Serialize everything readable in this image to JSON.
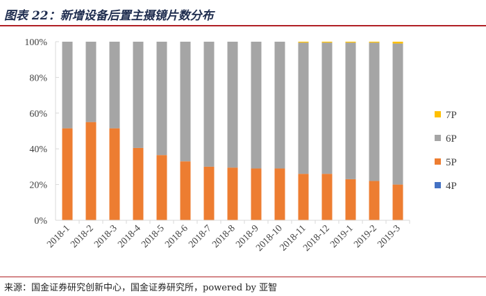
{
  "header": {
    "title": "图表 22：新增设备后置主摄镜片数分布"
  },
  "footer": {
    "source": "来源：国金证券研究创新中心，国金证券研究所，powered by 亚智"
  },
  "colors": {
    "4P": "#4472c4",
    "5P": "#ed7d31",
    "6P": "#a5a5a5",
    "7P": "#ffc000",
    "axis": "#d9d9d9",
    "text": "#404040"
  },
  "chart_data": {
    "type": "bar",
    "stacked": true,
    "percent_stacked": true,
    "title": "",
    "xlabel": "",
    "ylabel": "",
    "ylim": [
      0,
      100
    ],
    "yticks": [
      "0%",
      "20%",
      "40%",
      "60%",
      "80%",
      "100%"
    ],
    "ytick_values": [
      0,
      20,
      40,
      60,
      80,
      100
    ],
    "categories": [
      "2018-1",
      "2018-2",
      "2018-3",
      "2018-4",
      "2018-5",
      "2018-6",
      "2018-7",
      "2018-8",
      "2018-9",
      "2018-10",
      "2018-11",
      "2018-12",
      "2019-1",
      "2019-2",
      "2019-3"
    ],
    "series": [
      {
        "name": "4P",
        "values": [
          0,
          0,
          0,
          0,
          0,
          0,
          0,
          0,
          0,
          0,
          0,
          0,
          0,
          0,
          0
        ]
      },
      {
        "name": "5P",
        "values": [
          51.5,
          55,
          51.5,
          40.5,
          36.5,
          33,
          30,
          29.5,
          29,
          29,
          26,
          26,
          23,
          22,
          20
        ]
      },
      {
        "name": "6P",
        "values": [
          48.5,
          45,
          48.5,
          59.5,
          63.5,
          67,
          70,
          70.5,
          71,
          71,
          73.5,
          73.5,
          76.5,
          77.5,
          79
        ]
      },
      {
        "name": "7P",
        "values": [
          0,
          0,
          0,
          0,
          0,
          0,
          0,
          0,
          0,
          0,
          0.5,
          0.5,
          0.5,
          0.5,
          1
        ]
      }
    ],
    "legend": {
      "position": "right",
      "order": [
        "7P",
        "6P",
        "5P",
        "4P"
      ]
    }
  }
}
